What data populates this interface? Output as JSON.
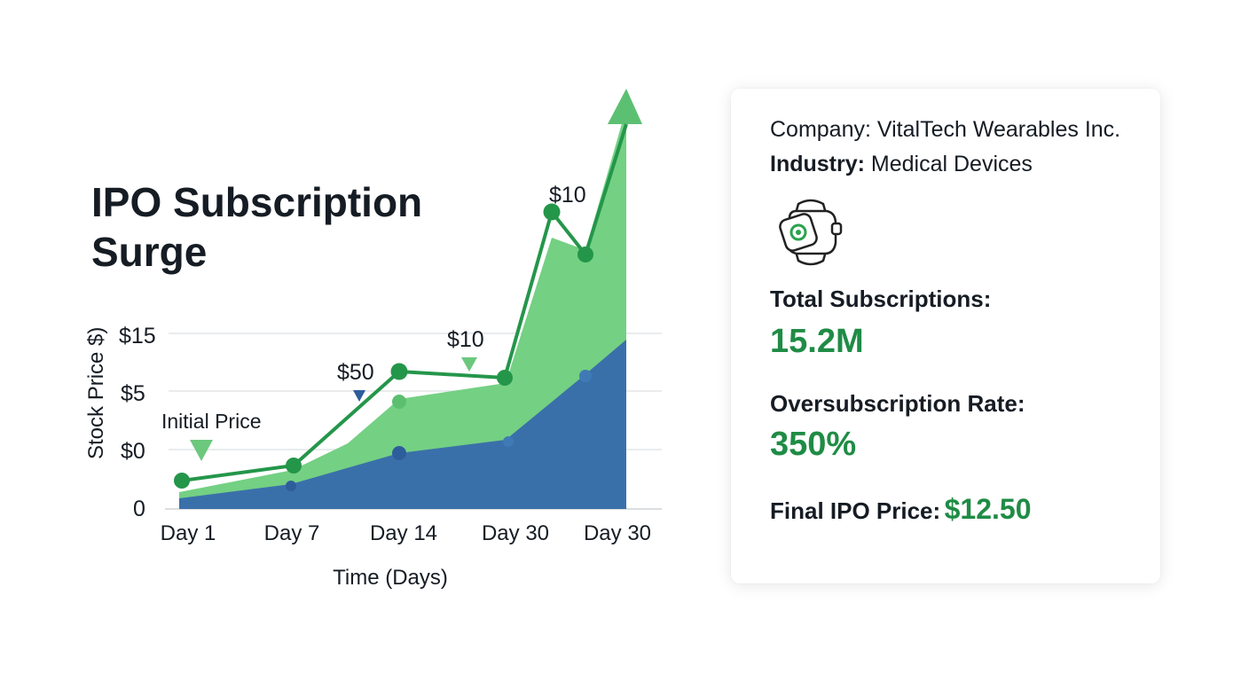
{
  "title_lines": [
    "IPO Subscription",
    "Surge"
  ],
  "colors": {
    "line": "#24964a",
    "area_green": "#74d083",
    "area_blue": "#3a70aa",
    "arrow": "#5cc072",
    "value_green": "#1f8c45",
    "marker_blue": "#2e5d9c"
  },
  "chart_data": {
    "type": "area",
    "title": "IPO Subscription Surge",
    "xlabel": "Time (Days)",
    "ylabel": "Stock Price $)",
    "x_tick_labels": [
      "Day 1",
      "Day 7",
      "Day 14",
      "Day 30",
      "Day 30"
    ],
    "y_tick_labels": [
      "0",
      "$0",
      "$5",
      "$15"
    ],
    "grid": true,
    "annotations": [
      {
        "text": "Initial Price",
        "x_index": 0
      },
      {
        "text": "$50",
        "x_index": 1.65
      },
      {
        "text": "$10",
        "x_index": 2.6
      },
      {
        "text": "$10",
        "x_index": 3.35
      }
    ]
  },
  "card": {
    "company_label": "Company:",
    "company_value": "VitalTech Wearables Inc.",
    "industry_label": "Industry:",
    "industry_value": "Medical Devices",
    "icon": "smartwatch-icon",
    "subs_label": "Total Subscriptions:",
    "subs_value": "15.2M",
    "rate_label": "Oversubscription Rate:",
    "rate_value": "350%",
    "price_label": "Final IPO Price:",
    "price_value": "$12.50"
  }
}
